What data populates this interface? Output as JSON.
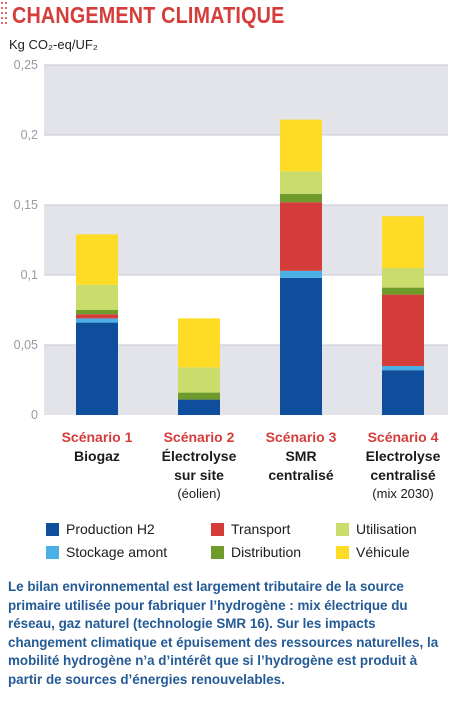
{
  "header": {
    "title": "CHANGEMENT CLIMATIQUE",
    "unit_label": "Kg CO₂-eq/UF₂"
  },
  "colors": {
    "title": "#d43d3a",
    "caption": "#245a96",
    "plot_band": "#e3e4ea",
    "grid": "#c9cad2"
  },
  "chart_data": {
    "type": "bar",
    "stacked": true,
    "ylabel": "Kg CO₂-eq/UF₂",
    "ylim": [
      0,
      0.25
    ],
    "yticks": [
      0,
      0.05,
      0.1,
      0.15,
      0.2,
      0.25
    ],
    "ytick_labels": [
      "0",
      "0,05",
      "0,1",
      "0,15",
      "0,2",
      "0,25"
    ],
    "grid": true,
    "legend_position": "bottom",
    "categories": [
      {
        "scenario": "Scénario 1",
        "lines": [
          "Biogaz"
        ],
        "note": ""
      },
      {
        "scenario": "Scénario 2",
        "lines": [
          "Électrolyse",
          "sur site"
        ],
        "note": "(éolien)"
      },
      {
        "scenario": "Scénario 3",
        "lines": [
          "SMR",
          "centralisé"
        ],
        "note": ""
      },
      {
        "scenario": "Scénario 4",
        "lines": [
          "Electrolyse",
          "centralisé"
        ],
        "note": "(mix 2030)"
      }
    ],
    "series": [
      {
        "name": "Production H2",
        "color": "#0e4e9c",
        "values": [
          0.066,
          0.011,
          0.098,
          0.032
        ]
      },
      {
        "name": "Stockage amont",
        "color": "#4bb0e6",
        "values": [
          0.003,
          0.0,
          0.005,
          0.003
        ]
      },
      {
        "name": "Transport",
        "color": "#d43d3a",
        "values": [
          0.003,
          0.0,
          0.049,
          0.051
        ]
      },
      {
        "name": "Distribution",
        "color": "#6f9a2c",
        "values": [
          0.003,
          0.005,
          0.006,
          0.005
        ]
      },
      {
        "name": "Utilisation",
        "color": "#c9dc6c",
        "values": [
          0.018,
          0.018,
          0.016,
          0.014
        ]
      },
      {
        "name": "Véhicule",
        "color": "#fedb25",
        "values": [
          0.036,
          0.035,
          0.037,
          0.037
        ]
      }
    ]
  },
  "legend": [
    {
      "label": "Production H2",
      "color": "#0e4e9c"
    },
    {
      "label": "Transport",
      "color": "#d43d3a"
    },
    {
      "label": "Utilisation",
      "color": "#c9dc6c"
    },
    {
      "label": "Stockage amont",
      "color": "#4bb0e6"
    },
    {
      "label": "Distribution",
      "color": "#6f9a2c"
    },
    {
      "label": "Véhicule",
      "color": "#fedb25"
    }
  ],
  "caption": "Le bilan environnemental est largement tributaire de la source primaire utilisée pour fabriquer l’hydrogène : mix électrique du réseau, gaz naturel (technologie SMR 16). Sur les impacts changement climatique et épuisement des ressources naturelles, la mobilité hydrogène n’a d’intérêt que si l’hydrogène est produit à partir de sources d’énergies renouvelables."
}
